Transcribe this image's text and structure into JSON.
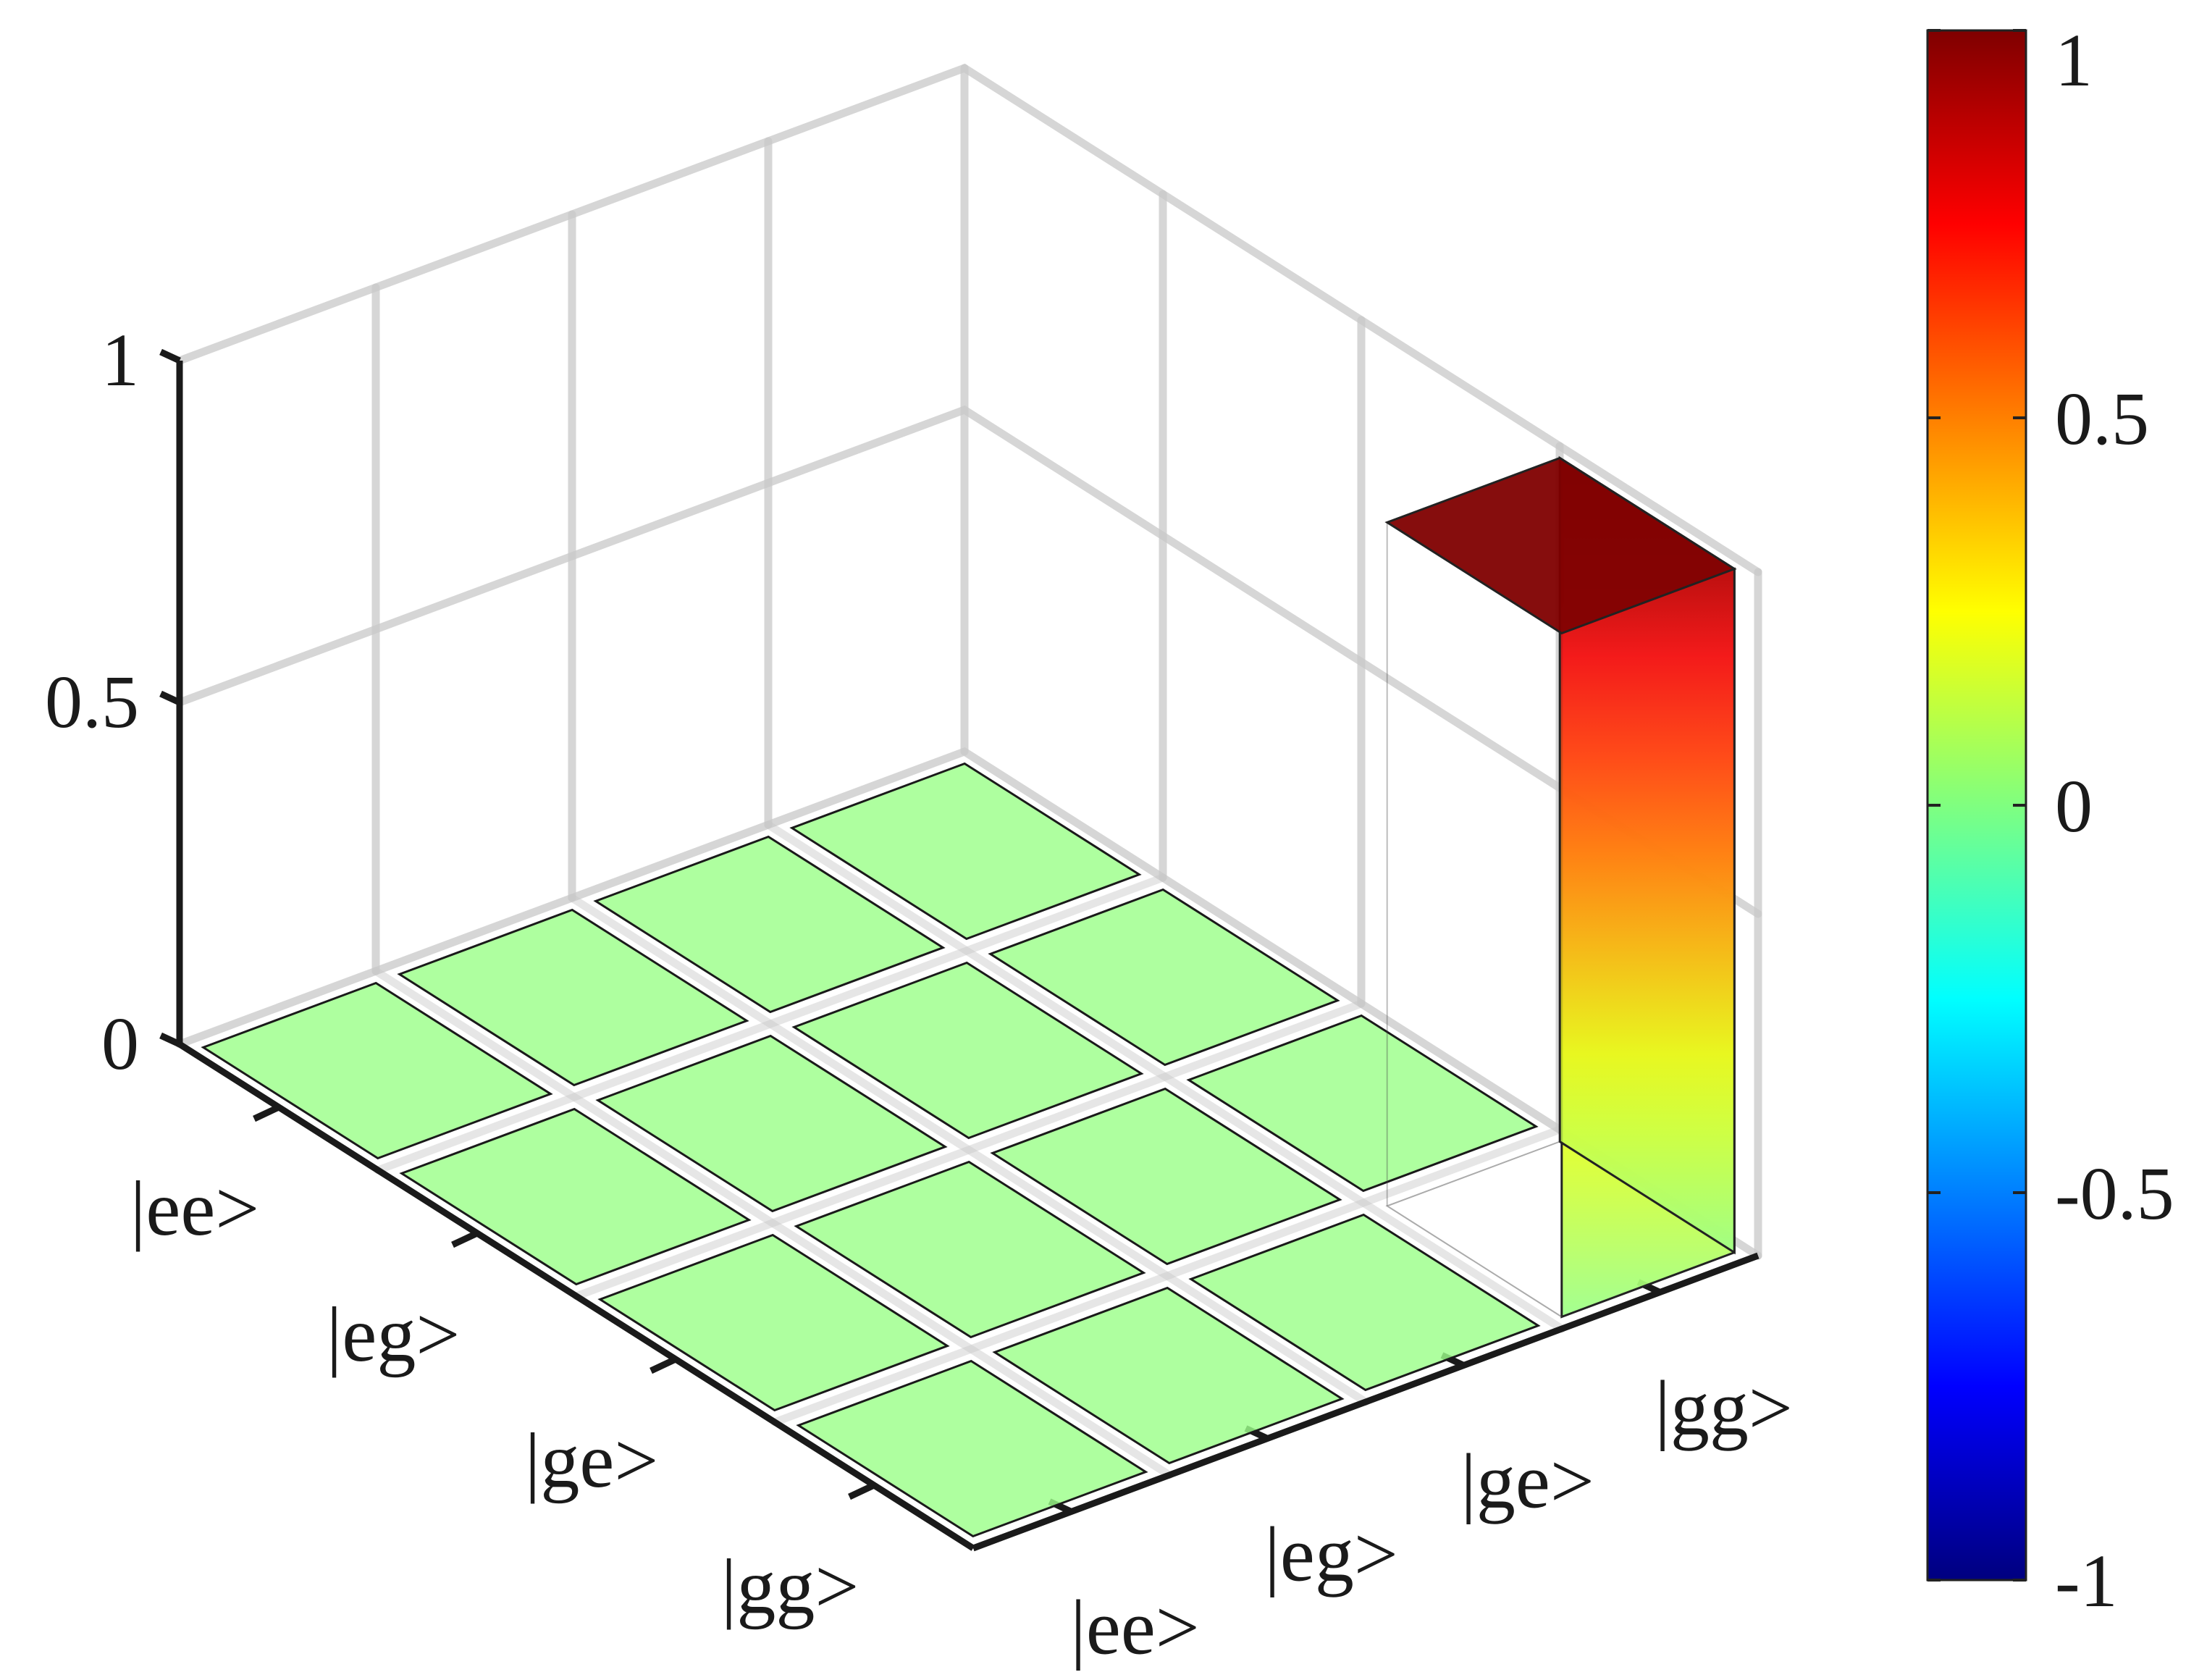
{
  "chart_data": {
    "type": "bar3d",
    "title": "",
    "x_categories": [
      "|ee>",
      "|eg>",
      "|ge>",
      "|gg>"
    ],
    "y_categories": [
      "|ee>",
      "|eg>",
      "|ge>",
      "|gg>"
    ],
    "zlim": [
      0,
      1
    ],
    "z_ticks": [
      "0",
      "0.5",
      "1"
    ],
    "grid": true,
    "values": [
      {
        "x": "|ee>",
        "y": "|ee>",
        "z": 0
      },
      {
        "x": "|eg>",
        "y": "|ee>",
        "z": 0
      },
      {
        "x": "|ge>",
        "y": "|ee>",
        "z": 0
      },
      {
        "x": "|gg>",
        "y": "|ee>",
        "z": 0
      },
      {
        "x": "|ee>",
        "y": "|eg>",
        "z": 0
      },
      {
        "x": "|eg>",
        "y": "|eg>",
        "z": 0
      },
      {
        "x": "|ge>",
        "y": "|eg>",
        "z": 0
      },
      {
        "x": "|gg>",
        "y": "|eg>",
        "z": 0
      },
      {
        "x": "|ee>",
        "y": "|ge>",
        "z": 0
      },
      {
        "x": "|eg>",
        "y": "|ge>",
        "z": 0
      },
      {
        "x": "|ge>",
        "y": "|ge>",
        "z": 0
      },
      {
        "x": "|gg>",
        "y": "|ge>",
        "z": 0
      },
      {
        "x": "|ee>",
        "y": "|gg>",
        "z": 0
      },
      {
        "x": "|eg>",
        "y": "|gg>",
        "z": 0
      },
      {
        "x": "|ge>",
        "y": "|gg>",
        "z": 0
      },
      {
        "x": "|gg>",
        "y": "|gg>",
        "z": 1
      }
    ],
    "colorbar": {
      "colormap": "jet",
      "range": [
        -1,
        1
      ],
      "ticks": [
        "1",
        "0.5",
        "0",
        "-0.5",
        "-1"
      ],
      "location": "right"
    }
  }
}
